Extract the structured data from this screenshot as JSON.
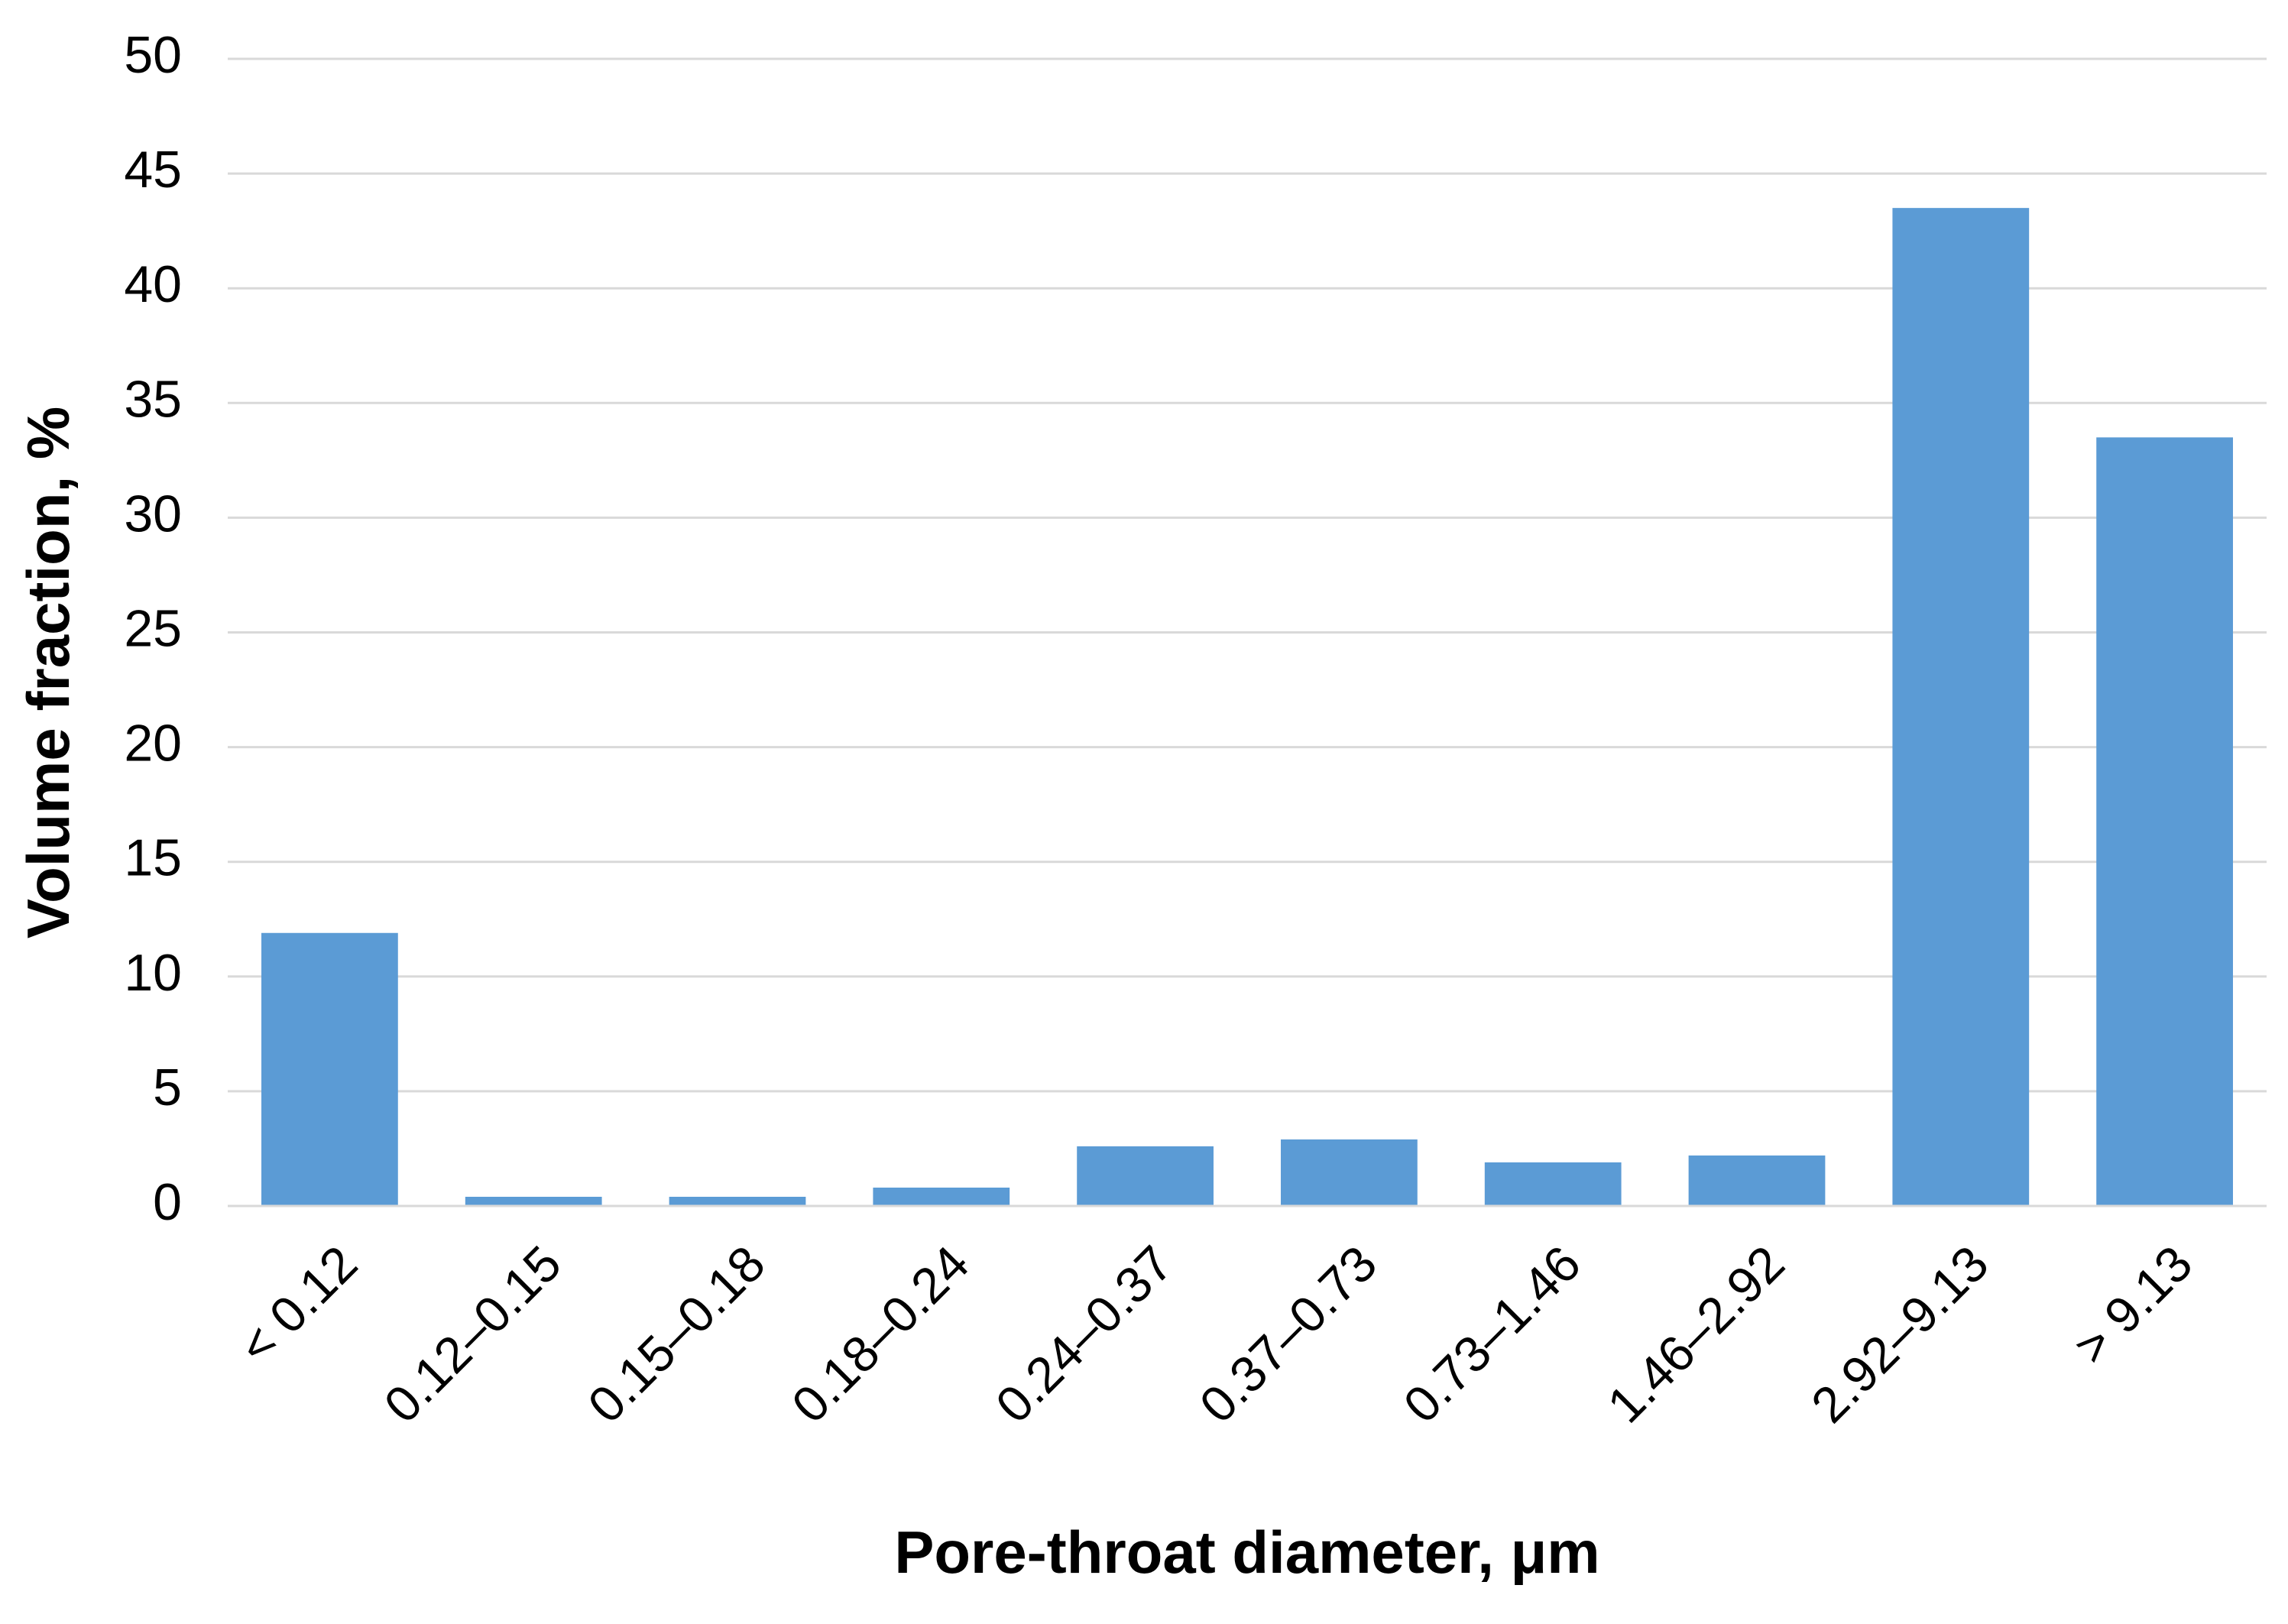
{
  "chart_data": {
    "type": "bar",
    "x_label": "Pore-throat diameter, μm",
    "y_label": "Volume fraction, %",
    "categories": [
      "< 0.12",
      "0.12–0.15",
      "0.15–0.18",
      "0.18–0.24",
      "0.24–0.37",
      "0.37–0.73",
      "0.73–1.46",
      "1.46–2.92",
      "2.92–9.13",
      "> 9.13"
    ],
    "values": [
      11.9,
      0.4,
      0.4,
      0.8,
      2.6,
      2.9,
      1.9,
      2.2,
      43.5,
      33.5
    ],
    "color": "#5b9bd5",
    "ylim": [
      0,
      50
    ],
    "yticks": [
      0,
      5,
      10,
      15,
      20,
      25,
      30,
      35,
      40,
      45,
      50
    ],
    "grid": true
  }
}
